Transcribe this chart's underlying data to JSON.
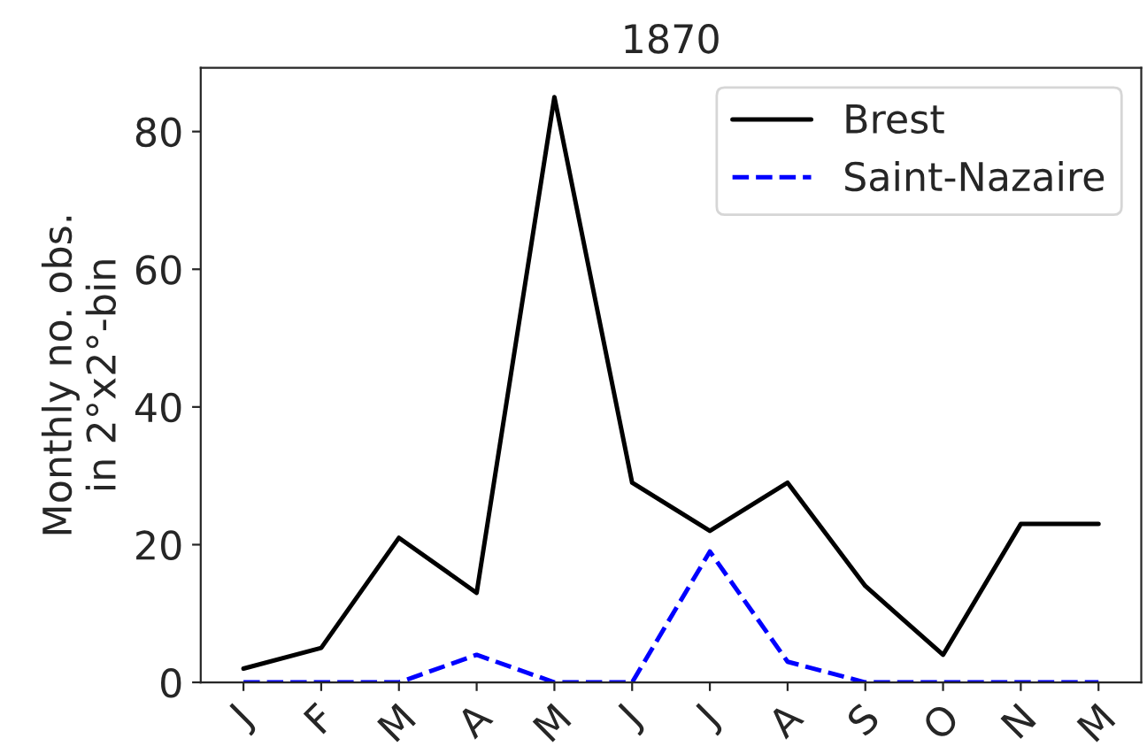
{
  "chart_data": {
    "type": "line",
    "title": "1870",
    "ylabel": "Monthly no. obs.\nin 2°x2°-bin",
    "categories": [
      "J",
      "F",
      "M",
      "A",
      "M",
      "J",
      "J",
      "A",
      "S",
      "O",
      "N",
      "M"
    ],
    "series": [
      {
        "name": "Brest",
        "color": "#000000",
        "line_style": "solid",
        "values": [
          2,
          5,
          21,
          13,
          85,
          29,
          22,
          29,
          14,
          4,
          23,
          23
        ]
      },
      {
        "name": "Saint-Nazaire",
        "color": "#0000ff",
        "line_style": "dashed",
        "values": [
          0,
          0,
          0,
          4,
          0,
          0,
          19,
          3,
          0,
          0,
          0,
          0
        ]
      }
    ],
    "ylim": [
      0,
      89.25
    ],
    "yticks": [
      0,
      20,
      40,
      60,
      80
    ],
    "grid": false,
    "legend": "top right",
    "marker": "none"
  }
}
